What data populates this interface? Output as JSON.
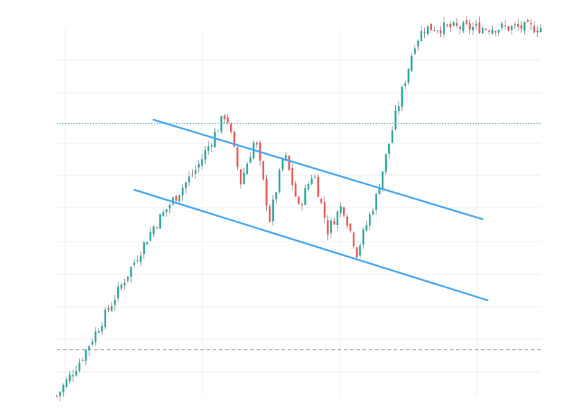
{
  "chart_data": {
    "type": "candlestick",
    "title": "",
    "xlabel": "",
    "ylabel": "",
    "x_range": [
      0,
      100
    ],
    "y_range": [
      0,
      100
    ],
    "grid": true,
    "legend": "none",
    "colors": {
      "up": "#26a69a",
      "down": "#ef5350",
      "wick": "#888888",
      "channel": "#42a5f5",
      "resistance_level": "#26a69a",
      "support_level": "#8a8a8a",
      "grid": "#eeeeee"
    },
    "price_path": [
      [
        0,
        0
      ],
      [
        5,
        10
      ],
      [
        10,
        22
      ],
      [
        15,
        34
      ],
      [
        20,
        46
      ],
      [
        25,
        55
      ],
      [
        29,
        62
      ],
      [
        33,
        72
      ],
      [
        35,
        77
      ],
      [
        38,
        58
      ],
      [
        41,
        70
      ],
      [
        44,
        48
      ],
      [
        47,
        66
      ],
      [
        50,
        51
      ],
      [
        53,
        61
      ],
      [
        56,
        45
      ],
      [
        59,
        52
      ],
      [
        62,
        39
      ],
      [
        66,
        54
      ],
      [
        70,
        76
      ],
      [
        72,
        86
      ],
      [
        74,
        96
      ],
      [
        76,
        100
      ]
    ],
    "candles": [],
    "channel_upper": {
      "x": [
        20,
        88
      ],
      "y": [
        75,
        48
      ]
    },
    "channel_lower": {
      "x": [
        16,
        89
      ],
      "y": [
        56,
        26
      ]
    },
    "resistance_level": 74,
    "support_level": 12.6
  }
}
